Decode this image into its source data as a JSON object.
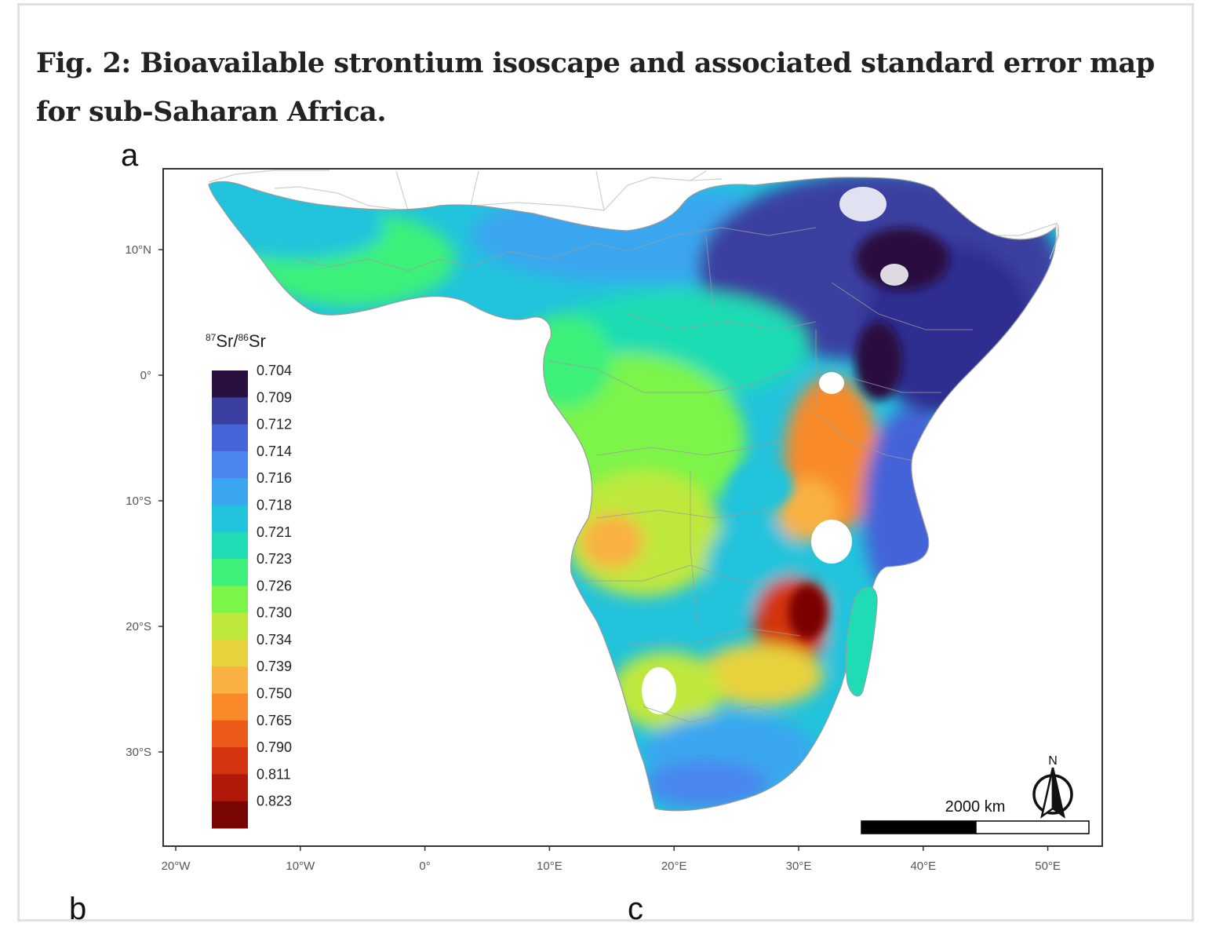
{
  "figure": {
    "title": "Fig. 2: Bioavailable strontium isoscape and associated standard error map for sub-Saharan Africa.",
    "panel_a_label": "a",
    "panel_b_label": "b",
    "panel_c_label": "c"
  },
  "map": {
    "lat_ticks": [
      "10°N",
      "0°",
      "10°S",
      "20°S",
      "30°S"
    ],
    "lon_ticks": [
      "20°W",
      "10°W",
      "0°",
      "10°E",
      "20°E",
      "30°E",
      "40°E",
      "50°E"
    ],
    "legend": {
      "title_sup1": "87",
      "title_sr1": "Sr/",
      "title_sup2": "86",
      "title_sr2": "Sr",
      "bins": [
        {
          "label": "0.704",
          "color": "#2a1040"
        },
        {
          "label": "0.709",
          "color": "#3b3fa0"
        },
        {
          "label": "0.712",
          "color": "#4464d8"
        },
        {
          "label": "0.714",
          "color": "#4a86ee"
        },
        {
          "label": "0.716",
          "color": "#3aa6f0"
        },
        {
          "label": "0.718",
          "color": "#22c3dc"
        },
        {
          "label": "0.721",
          "color": "#1fdcb4"
        },
        {
          "label": "0.723",
          "color": "#3ef07a"
        },
        {
          "label": "0.726",
          "color": "#7cf44a"
        },
        {
          "label": "0.730",
          "color": "#bfe83c"
        },
        {
          "label": "0.734",
          "color": "#e8d23e"
        },
        {
          "label": "0.739",
          "color": "#f9b142"
        },
        {
          "label": "0.750",
          "color": "#f88a2a"
        },
        {
          "label": "0.765",
          "color": "#ec5a1a"
        },
        {
          "label": "0.790",
          "color": "#d43410"
        },
        {
          "label": "0.811",
          "color": "#b11a0a"
        },
        {
          "label": "0.823",
          "color": "#7a0604"
        }
      ]
    },
    "scale_bar_label": "2000 km",
    "north_label": "N"
  }
}
